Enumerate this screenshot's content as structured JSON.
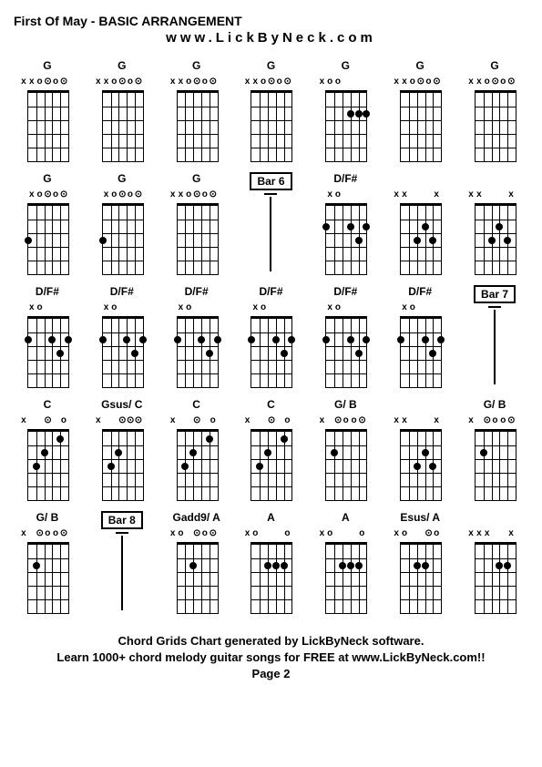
{
  "title": "First Of May - BASIC ARRANGEMENT",
  "subtitle": "www.LickByNeck.com",
  "footer_line1": "Chord Grids Chart generated by LickByNeck software.",
  "footer_line2": "Learn 1000+ chord melody guitar songs for FREE at www.LickByNeck.com!!",
  "footer_line3": "Page 2",
  "num_strings": 6,
  "num_frets": 5,
  "diagram_width": 60,
  "diagram_height": 95,
  "fretboard_width": 44,
  "fretboard_height": 75,
  "cells": [
    {
      "type": "chord",
      "label": "G",
      "markers": [
        "x",
        "x",
        "o",
        "⊙",
        "o",
        "⊙"
      ],
      "dots": []
    },
    {
      "type": "chord",
      "label": "G",
      "markers": [
        "x",
        "x",
        "o",
        "⊙",
        "o",
        "⊙"
      ],
      "dots": []
    },
    {
      "type": "chord",
      "label": "G",
      "markers": [
        "x",
        "x",
        "o",
        "⊙",
        "o",
        "⊙"
      ],
      "dots": []
    },
    {
      "type": "chord",
      "label": "G",
      "markers": [
        "x",
        "x",
        "o",
        "⊙",
        "o",
        "⊙"
      ],
      "dots": []
    },
    {
      "type": "chord",
      "label": "G",
      "markers": [
        "x",
        "o",
        "o",
        "",
        "",
        ""
      ],
      "dots": [
        [
          2,
          3
        ],
        [
          2,
          4
        ],
        [
          2,
          5
        ]
      ]
    },
    {
      "type": "chord",
      "label": "G",
      "markers": [
        "x",
        "x",
        "o",
        "⊙",
        "o",
        "⊙"
      ],
      "dots": []
    },
    {
      "type": "chord",
      "label": "G",
      "markers": [
        "x",
        "x",
        "o",
        "⊙",
        "o",
        "⊙"
      ],
      "dots": []
    },
    {
      "type": "chord",
      "label": "G",
      "markers": [
        "",
        "x",
        "o",
        "⊙",
        "o",
        "⊙"
      ],
      "dots": [
        [
          3,
          0
        ]
      ]
    },
    {
      "type": "chord",
      "label": "G",
      "markers": [
        "",
        "x",
        "o",
        "⊙",
        "o",
        "⊙"
      ],
      "dots": [
        [
          3,
          0
        ]
      ]
    },
    {
      "type": "chord",
      "label": "G",
      "markers": [
        "x",
        "x",
        "o",
        "⊙",
        "o",
        "⊙"
      ],
      "dots": []
    },
    {
      "type": "bar",
      "label": "Bar 6"
    },
    {
      "type": "chord",
      "label": "D/F#",
      "markers": [
        "",
        "x",
        "o",
        "",
        "",
        ""
      ],
      "dots": [
        [
          2,
          0
        ],
        [
          2,
          3
        ],
        [
          3,
          4
        ],
        [
          2,
          5
        ]
      ]
    },
    {
      "type": "chord",
      "label": "",
      "markers": [
        "x",
        "x",
        "",
        "",
        "",
        "x"
      ],
      "dots": [
        [
          3,
          2
        ],
        [
          2,
          3
        ],
        [
          3,
          4
        ]
      ]
    },
    {
      "type": "chord",
      "label": "",
      "markers": [
        "x",
        "x",
        "",
        "",
        "",
        "x"
      ],
      "dots": [
        [
          3,
          2
        ],
        [
          2,
          3
        ],
        [
          3,
          4
        ]
      ]
    },
    {
      "type": "chord",
      "label": "D/F#",
      "markers": [
        "",
        "x",
        "o",
        "",
        "",
        ""
      ],
      "dots": [
        [
          2,
          0
        ],
        [
          2,
          3
        ],
        [
          3,
          4
        ],
        [
          2,
          5
        ]
      ]
    },
    {
      "type": "chord",
      "label": "D/F#",
      "markers": [
        "",
        "x",
        "o",
        "",
        "",
        ""
      ],
      "dots": [
        [
          2,
          0
        ],
        [
          2,
          3
        ],
        [
          3,
          4
        ],
        [
          2,
          5
        ]
      ]
    },
    {
      "type": "chord",
      "label": "D/F#",
      "markers": [
        "",
        "x",
        "o",
        "",
        "",
        ""
      ],
      "dots": [
        [
          2,
          0
        ],
        [
          2,
          3
        ],
        [
          3,
          4
        ],
        [
          2,
          5
        ]
      ]
    },
    {
      "type": "chord",
      "label": "D/F#",
      "markers": [
        "",
        "x",
        "o",
        "",
        "",
        ""
      ],
      "dots": [
        [
          2,
          0
        ],
        [
          2,
          3
        ],
        [
          3,
          4
        ],
        [
          2,
          5
        ]
      ]
    },
    {
      "type": "chord",
      "label": "D/F#",
      "markers": [
        "",
        "x",
        "o",
        "",
        "",
        ""
      ],
      "dots": [
        [
          2,
          0
        ],
        [
          2,
          3
        ],
        [
          3,
          4
        ],
        [
          2,
          5
        ]
      ]
    },
    {
      "type": "chord",
      "label": "D/F#",
      "markers": [
        "",
        "x",
        "o",
        "",
        "",
        ""
      ],
      "dots": [
        [
          2,
          0
        ],
        [
          2,
          3
        ],
        [
          3,
          4
        ],
        [
          2,
          5
        ]
      ]
    },
    {
      "type": "bar",
      "label": "Bar 7"
    },
    {
      "type": "chord",
      "label": "C",
      "markers": [
        "x",
        "",
        "",
        "⊙",
        "",
        "o"
      ],
      "dots": [
        [
          3,
          1
        ],
        [
          2,
          2
        ],
        [
          1,
          4
        ]
      ]
    },
    {
      "type": "chord",
      "label": "Gsus/ C",
      "markers": [
        "x",
        "",
        "",
        "⊙",
        "⊙",
        "⊙"
      ],
      "dots": [
        [
          3,
          1
        ],
        [
          2,
          2
        ]
      ]
    },
    {
      "type": "chord",
      "label": "C",
      "markers": [
        "x",
        "",
        "",
        "⊙",
        "",
        "o"
      ],
      "dots": [
        [
          3,
          1
        ],
        [
          2,
          2
        ],
        [
          1,
          4
        ]
      ]
    },
    {
      "type": "chord",
      "label": "C",
      "markers": [
        "x",
        "",
        "",
        "⊙",
        "",
        "o"
      ],
      "dots": [
        [
          3,
          1
        ],
        [
          2,
          2
        ],
        [
          1,
          4
        ]
      ]
    },
    {
      "type": "chord",
      "label": "G/ B",
      "markers": [
        "x",
        "",
        "⊙",
        "o",
        "o",
        "⊙"
      ],
      "dots": [
        [
          2,
          1
        ]
      ]
    },
    {
      "type": "chord",
      "label": "",
      "markers": [
        "x",
        "x",
        "",
        "",
        "",
        "x"
      ],
      "dots": [
        [
          3,
          2
        ],
        [
          2,
          3
        ],
        [
          3,
          4
        ]
      ]
    },
    {
      "type": "chord",
      "label": "G/ B",
      "markers": [
        "x",
        "",
        "⊙",
        "o",
        "o",
        "⊙"
      ],
      "dots": [
        [
          2,
          1
        ]
      ]
    },
    {
      "type": "chord",
      "label": "G/ B",
      "markers": [
        "x",
        "",
        "⊙",
        "o",
        "o",
        "⊙"
      ],
      "dots": [
        [
          2,
          1
        ]
      ]
    },
    {
      "type": "bar",
      "label": "Bar 8"
    },
    {
      "type": "chord",
      "label": "Gadd9/ A",
      "markers": [
        "x",
        "o",
        "",
        "⊙",
        "o",
        "⊙"
      ],
      "dots": [
        [
          2,
          2
        ]
      ]
    },
    {
      "type": "chord",
      "label": "A",
      "markers": [
        "x",
        "o",
        "",
        "",
        "",
        "o"
      ],
      "dots": [
        [
          2,
          2
        ],
        [
          2,
          3
        ],
        [
          2,
          4
        ]
      ]
    },
    {
      "type": "chord",
      "label": "A",
      "markers": [
        "x",
        "o",
        "",
        "",
        "",
        "o"
      ],
      "dots": [
        [
          2,
          2
        ],
        [
          2,
          3
        ],
        [
          2,
          4
        ]
      ]
    },
    {
      "type": "chord",
      "label": "Esus/ A",
      "markers": [
        "x",
        "o",
        "",
        "",
        "⊙",
        "o"
      ],
      "dots": [
        [
          2,
          2
        ],
        [
          2,
          3
        ]
      ]
    },
    {
      "type": "chord",
      "label": "",
      "markers": [
        "x",
        "x",
        "x",
        "",
        "",
        "x"
      ],
      "dots": [
        [
          2,
          3
        ],
        [
          2,
          4
        ]
      ]
    }
  ]
}
